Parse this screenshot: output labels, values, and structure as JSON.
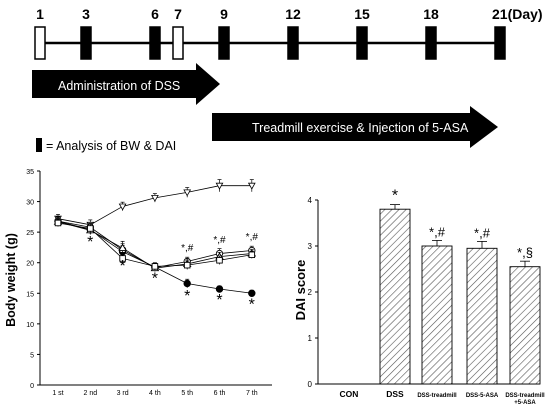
{
  "timeline": {
    "days": [
      "1",
      "3",
      "6",
      "7",
      "9",
      "12",
      "15",
      "18",
      "21(Day)"
    ],
    "day_values": [
      1,
      3,
      6,
      7,
      9,
      12,
      15,
      18,
      21
    ],
    "open_markers": [
      1,
      7
    ],
    "filled_markers": [
      3,
      6,
      9,
      12,
      15,
      18,
      21
    ],
    "dss_label": "Administration of DSS",
    "dss_range": [
      1,
      7
    ],
    "treadmill_label": "Treadmill exercise & Injection of 5-ASA",
    "treadmill_range": [
      7,
      21
    ],
    "legend_symbol": "filled-bar",
    "legend_label": "= Analysis of BW & DAI"
  },
  "chart_data": [
    {
      "type": "line",
      "title": "",
      "xlabel": "",
      "ylabel": "Body weight (g)",
      "categories": [
        "1 st",
        "2 nd",
        "3 rd",
        "4 th",
        "5 th",
        "6 th",
        "7 th"
      ],
      "ylim": [
        0,
        35
      ],
      "yticks": [
        "0",
        "5",
        "10",
        "15",
        "20",
        "25",
        "30",
        "35"
      ],
      "series": [
        {
          "marker": "triangle-down",
          "values": [
            27.2,
            26.2,
            29.2,
            30.6,
            31.5,
            32.6,
            32.6
          ],
          "errors": [
            0.7,
            0.8,
            0.7,
            0.7,
            0.8,
            1.0,
            1.0
          ]
        },
        {
          "marker": "circle-filled",
          "values": [
            26.8,
            25.4,
            21.8,
            19.3,
            16.6,
            15.7,
            15.0
          ],
          "errors": [
            0.7,
            0.7,
            1.0,
            0.6,
            0.7,
            0.5,
            0.5
          ]
        },
        {
          "marker": "circle-open",
          "values": [
            26.8,
            25.8,
            22.1,
            19.2,
            20.2,
            21.5,
            22.0
          ],
          "errors": [
            0.7,
            0.6,
            1.0,
            0.6,
            0.7,
            0.8,
            0.7
          ]
        },
        {
          "marker": "triangle-up",
          "values": [
            26.7,
            25.3,
            22.4,
            19.1,
            19.8,
            21.0,
            21.5
          ],
          "errors": [
            0.6,
            0.7,
            1.1,
            0.5,
            0.8,
            0.7,
            0.7
          ]
        },
        {
          "marker": "square-open",
          "values": [
            26.5,
            25.6,
            20.7,
            19.4,
            19.6,
            20.4,
            21.3
          ],
          "errors": [
            0.6,
            0.8,
            1.0,
            0.6,
            0.7,
            0.7,
            0.6
          ]
        }
      ],
      "annotations": [
        {
          "x": "2 nd",
          "text": "*"
        },
        {
          "x": "3 rd",
          "text": "*"
        },
        {
          "x": "4 th",
          "text": "*"
        },
        {
          "x": "5 th",
          "text": "*"
        },
        {
          "x": "6 th",
          "text": "*"
        },
        {
          "x": "7 th",
          "text": "*"
        },
        {
          "x": "5 th",
          "text": "*,#"
        },
        {
          "x": "6 th",
          "text": "*,#"
        },
        {
          "x": "7 th",
          "text": "*,#"
        }
      ]
    },
    {
      "type": "bar",
      "title": "",
      "xlabel": "",
      "ylabel": "DAI score",
      "categories": [
        "CON",
        "DSS",
        "DSS-treadmill",
        "DSS-5-ASA",
        "DSS-treadmill+5-ASA"
      ],
      "category_lines": [
        [
          "CON"
        ],
        [
          "DSS"
        ],
        [
          "DSS-treadmill"
        ],
        [
          "DSS-5-ASA"
        ],
        [
          "DSS-treadmill",
          "+5-ASA"
        ]
      ],
      "values": [
        0,
        3.8,
        3.0,
        2.95,
        2.55
      ],
      "errors": [
        0,
        0.1,
        0.12,
        0.15,
        0.12
      ],
      "ylim": [
        0,
        4
      ],
      "yticks": [
        "0",
        "1",
        "2",
        "3",
        "4"
      ],
      "annotations": [
        "",
        "*",
        "*,#",
        "*,#",
        "*,§"
      ]
    }
  ]
}
